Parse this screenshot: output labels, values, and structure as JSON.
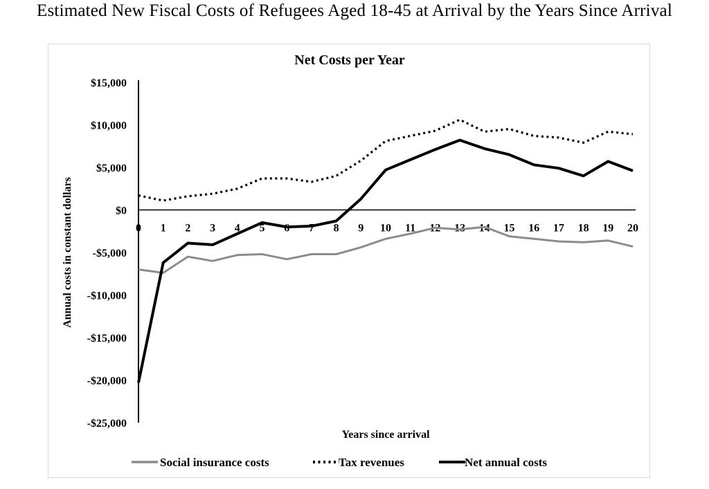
{
  "page": {
    "title": "Estimated New Fiscal Costs of Refugees Aged 18-45 at Arrival by the Years Since Arrival"
  },
  "chart_data": {
    "type": "line",
    "title": "Net Costs per Year",
    "xlabel": "Years since arrival",
    "ylabel": "Annual costs in constant dollars",
    "x": [
      0,
      1,
      2,
      3,
      4,
      5,
      6,
      7,
      8,
      9,
      10,
      11,
      12,
      13,
      14,
      15,
      16,
      17,
      18,
      19,
      20
    ],
    "xlim": [
      0,
      20
    ],
    "ylim": [
      -25000,
      15000
    ],
    "yticks": [
      15000,
      10000,
      5000,
      0,
      -5000,
      -10000,
      -15000,
      -20000,
      -25000
    ],
    "ytick_labels": [
      "$15,000",
      "$10,000",
      "$5,000",
      "$0",
      "-$5,000",
      "-$10,000",
      "-$15,000",
      "-$20,000",
      "-$25,000"
    ],
    "xtick_labels": [
      "0",
      "1",
      "2",
      "3",
      "4",
      "5",
      "6",
      "7",
      "8",
      "9",
      "10",
      "11",
      "12",
      "13",
      "14",
      "15",
      "16",
      "17",
      "18",
      "19",
      "20"
    ],
    "grid": false,
    "legend_position": "bottom",
    "series": [
      {
        "name": "Social insurance costs",
        "color": "#8c8c8c",
        "style": "solid",
        "values": [
          -7000,
          -7400,
          -5500,
          -6000,
          -5300,
          -5200,
          -5800,
          -5200,
          -5200,
          -4400,
          -3400,
          -2800,
          -2100,
          -2300,
          -2000,
          -3100,
          -3400,
          -3700,
          -3800,
          -3600,
          -4300
        ]
      },
      {
        "name": "Tax revenues",
        "color": "#000000",
        "style": "dotted",
        "values": [
          1700,
          1100,
          1600,
          1900,
          2500,
          3700,
          3700,
          3300,
          4000,
          5800,
          8100,
          8700,
          9300,
          10600,
          9200,
          9500,
          8700,
          8500,
          7900,
          9200,
          8900
        ]
      },
      {
        "name": "Net annual costs",
        "color": "#000000",
        "style": "solid",
        "values": [
          -20300,
          -6200,
          -3900,
          -4100,
          -2800,
          -1500,
          -2000,
          -1900,
          -1300,
          1300,
          4700,
          5900,
          7100,
          8200,
          7200,
          6500,
          5300,
          4900,
          4000,
          5700,
          4600
        ]
      }
    ]
  }
}
